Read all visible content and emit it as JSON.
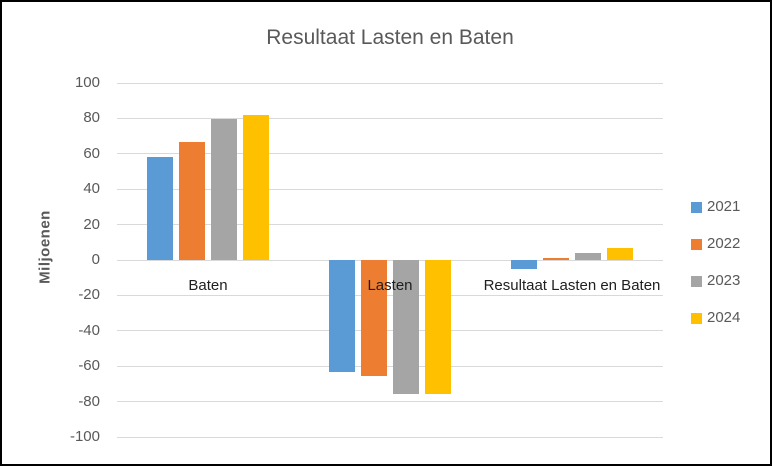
{
  "chart_data": {
    "type": "bar",
    "title": "Resultaat Lasten en Baten",
    "ylabel": "Miljoenen",
    "xlabel": "",
    "categories": [
      "Baten",
      "Lasten",
      "Resultaat Lasten en Baten"
    ],
    "series": [
      {
        "name": "2021",
        "color": "#5B9BD5",
        "values": [
          58,
          -63,
          -5
        ]
      },
      {
        "name": "2022",
        "color": "#ED7D31",
        "values": [
          66.5,
          -65.5,
          1
        ]
      },
      {
        "name": "2023",
        "color": "#A5A5A5",
        "values": [
          79.5,
          -75.5,
          4
        ]
      },
      {
        "name": "2024",
        "color": "#FFC000",
        "values": [
          82,
          -75.5,
          6.5
        ]
      }
    ],
    "ylim": [
      -100,
      100
    ],
    "ytick_step": 20,
    "ytick_labels": [
      "100",
      "80",
      "60",
      "40",
      "20",
      "0",
      "-20",
      "-40",
      "-60",
      "-80",
      "-100"
    ],
    "grid": true,
    "legend_position": "right"
  },
  "colors": {
    "gridline": "#D9D9D9",
    "axis_text": "#595959",
    "title_text": "#595959",
    "category_text": "#1f1f1f",
    "background": "#FFFFFF",
    "border": "#000000"
  }
}
